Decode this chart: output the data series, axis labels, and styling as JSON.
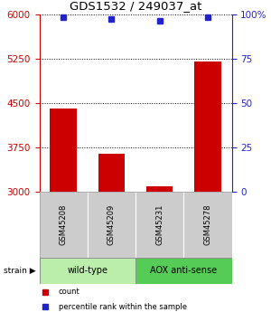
{
  "title": "GDS1532 / 249037_at",
  "samples": [
    "GSM45208",
    "GSM45209",
    "GSM45231",
    "GSM45278"
  ],
  "counts": [
    4400,
    3650,
    3100,
    5200
  ],
  "percentiles": [
    98,
    97,
    96,
    98
  ],
  "ylim_left": [
    3000,
    6000
  ],
  "ylim_right": [
    0,
    100
  ],
  "yticks_left": [
    3000,
    3750,
    4500,
    5250,
    6000
  ],
  "yticks_right": [
    0,
    25,
    50,
    75,
    100
  ],
  "yticklabels_right": [
    "0",
    "25",
    "50",
    "75",
    "100%"
  ],
  "bar_color": "#cc0000",
  "dot_color": "#2222cc",
  "strain_groups": [
    {
      "label": "wild-type",
      "samples": [
        0,
        1
      ],
      "color": "#bbeeaa"
    },
    {
      "label": "AOX anti-sense",
      "samples": [
        2,
        3
      ],
      "color": "#55cc55"
    }
  ],
  "sample_box_color": "#cccccc",
  "legend_items": [
    {
      "color": "#cc0000",
      "label": "count"
    },
    {
      "color": "#2222cc",
      "label": "percentile rank within the sample"
    }
  ],
  "bar_width": 0.55
}
